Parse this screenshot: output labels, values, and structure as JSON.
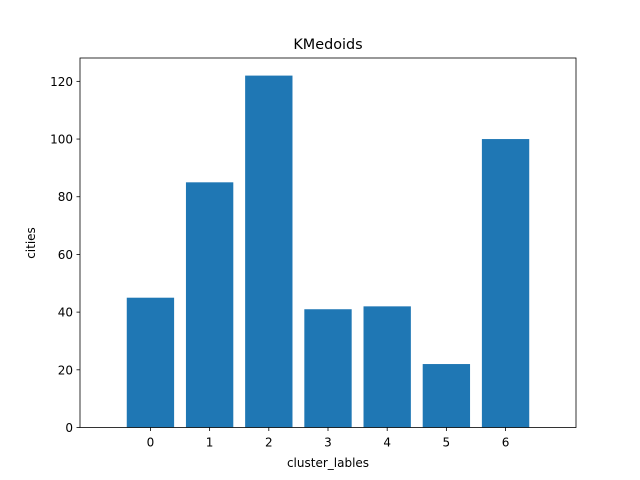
{
  "chart_data": {
    "type": "bar",
    "title": "KMedoids",
    "xlabel": "cluster_lables",
    "ylabel": "cities",
    "categories": [
      "0",
      "1",
      "2",
      "3",
      "4",
      "5",
      "6"
    ],
    "values": [
      45,
      85,
      122,
      41,
      42,
      22,
      100
    ],
    "ylim": [
      0,
      128.1
    ],
    "yticks": [
      0,
      20,
      40,
      60,
      80,
      100,
      120
    ],
    "bar_color": "#1f77b4",
    "grid": false,
    "legend": "none"
  }
}
